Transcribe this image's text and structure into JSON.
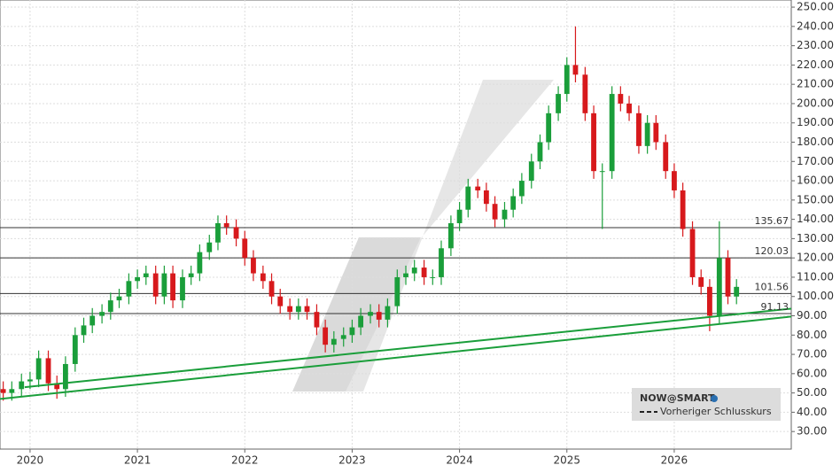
{
  "chart_data": {
    "type": "candlestick",
    "x": [
      2019.75,
      2019.83,
      2019.92,
      2020.0,
      2020.08,
      2020.17,
      2020.25,
      2020.33,
      2020.42,
      2020.5,
      2020.58,
      2020.67,
      2020.75,
      2020.83,
      2020.92,
      2021.0,
      2021.08,
      2021.17,
      2021.25,
      2021.33,
      2021.42,
      2021.5,
      2021.58,
      2021.67,
      2021.75,
      2021.83,
      2021.92,
      2022.0,
      2022.08,
      2022.17,
      2022.25,
      2022.33,
      2022.42,
      2022.5,
      2022.58,
      2022.67,
      2022.75,
      2022.83,
      2022.92,
      2023.0,
      2023.08,
      2023.17,
      2023.25,
      2023.33,
      2023.42,
      2023.5,
      2023.58,
      2023.67,
      2023.75,
      2023.83,
      2023.92,
      2024.0,
      2024.08,
      2024.17,
      2024.25,
      2024.33,
      2024.42,
      2024.5,
      2024.58,
      2024.67,
      2024.75,
      2024.83,
      2024.92,
      2025.0,
      2025.08,
      2025.17,
      2025.25,
      2025.33,
      2025.42,
      2025.5,
      2025.58,
      2025.67,
      2025.75,
      2025.83,
      2025.92,
      2026.0,
      2026.08,
      2026.17,
      2026.25,
      2026.33,
      2026.42,
      2026.5,
      2026.58
    ],
    "open": [
      52,
      50,
      52,
      56,
      57,
      68,
      55,
      52,
      65,
      80,
      85,
      90,
      92,
      98,
      100,
      108,
      110,
      112,
      100,
      112,
      98,
      110,
      112,
      123,
      128,
      138,
      136,
      130,
      120,
      112,
      108,
      100,
      95,
      92,
      95,
      92,
      84,
      75,
      78,
      80,
      84,
      90,
      92,
      88,
      95,
      110,
      112,
      115,
      110,
      110,
      125,
      138,
      145,
      157,
      155,
      148,
      140,
      145,
      152,
      160,
      170,
      180,
      195,
      205,
      220,
      215,
      195,
      165,
      165,
      205,
      200,
      195,
      178,
      190,
      180,
      165,
      155,
      135,
      110,
      105,
      90,
      120,
      100
    ],
    "high": [
      56,
      56,
      60,
      61,
      72,
      72,
      59,
      69,
      84,
      89,
      94,
      96,
      102,
      104,
      112,
      114,
      116,
      116,
      116,
      116,
      114,
      116,
      127,
      132,
      142,
      142,
      140,
      134,
      124,
      116,
      112,
      104,
      99,
      99,
      99,
      96,
      88,
      82,
      84,
      88,
      94,
      96,
      96,
      99,
      114,
      116,
      119,
      119,
      114,
      129,
      142,
      149,
      161,
      161,
      159,
      152,
      149,
      156,
      164,
      174,
      184,
      199,
      209,
      224,
      240,
      219,
      199,
      169,
      209,
      209,
      204,
      199,
      194,
      194,
      184,
      169,
      159,
      139,
      114,
      109,
      139,
      124,
      109
    ],
    "low": [
      46,
      46,
      48,
      52,
      53,
      51,
      47,
      48,
      61,
      76,
      81,
      86,
      88,
      94,
      96,
      104,
      106,
      96,
      96,
      94,
      94,
      106,
      108,
      119,
      124,
      132,
      126,
      116,
      108,
      104,
      96,
      91,
      88,
      88,
      88,
      80,
      71,
      71,
      74,
      76,
      80,
      86,
      84,
      84,
      91,
      106,
      108,
      106,
      106,
      106,
      121,
      134,
      141,
      151,
      144,
      136,
      136,
      141,
      148,
      156,
      166,
      176,
      191,
      201,
      211,
      191,
      161,
      135,
      161,
      196,
      191,
      174,
      174,
      176,
      161,
      151,
      131,
      106,
      101,
      82,
      86,
      96,
      96
    ],
    "close": [
      50,
      52,
      56,
      57,
      68,
      55,
      52,
      65,
      80,
      85,
      90,
      92,
      98,
      100,
      108,
      110,
      112,
      100,
      112,
      98,
      110,
      112,
      123,
      128,
      138,
      136,
      130,
      120,
      112,
      108,
      100,
      95,
      92,
      95,
      92,
      84,
      75,
      78,
      80,
      84,
      90,
      92,
      88,
      95,
      110,
      112,
      115,
      110,
      110,
      125,
      138,
      145,
      157,
      155,
      148,
      140,
      145,
      152,
      160,
      170,
      180,
      195,
      205,
      220,
      215,
      195,
      165,
      165,
      205,
      200,
      195,
      178,
      190,
      180,
      165,
      155,
      135,
      110,
      105,
      90,
      120,
      100,
      105
    ],
    "up_color": "#1a9e3a",
    "down_color": "#d7191c",
    "levels": [
      135.67,
      120.03,
      101.56,
      91.13
    ],
    "trendlines": [
      {
        "x": [
          2019.72,
          2027.09
        ],
        "values": [
          46.9,
          89.6
        ],
        "color": "#1a9e3a"
      },
      {
        "x": [
          2019.95,
          2027.09
        ],
        "values": [
          53,
          93.7
        ],
        "color": "#1a9e3a"
      }
    ],
    "xlim": [
      2019.72,
      2027.09
    ],
    "xticks": [
      2020,
      2021,
      2022,
      2023,
      2024,
      2025,
      2026
    ],
    "ylim": [
      20.9,
      253.7
    ],
    "yticks": [
      {
        "value": 30,
        "label": "30.00"
      },
      {
        "value": 40,
        "label": "40.00"
      },
      {
        "value": 50,
        "label": "50.00"
      },
      {
        "value": 60,
        "label": "60.00"
      },
      {
        "value": 70,
        "label": "70.00"
      },
      {
        "value": 80,
        "label": "80.00"
      },
      {
        "value": 90,
        "label": "90.00"
      },
      {
        "value": 100,
        "label": "100.00"
      },
      {
        "value": 110,
        "label": "110.00"
      },
      {
        "value": 120,
        "label": "120.00"
      },
      {
        "value": 130,
        "label": "130.00"
      },
      {
        "value": 140,
        "label": "140.00"
      },
      {
        "value": 150,
        "label": "150.00"
      },
      {
        "value": 160,
        "label": "160.00"
      },
      {
        "value": 170,
        "label": "170.00"
      },
      {
        "value": 180,
        "label": "180.00"
      },
      {
        "value": 190,
        "label": "190.00"
      },
      {
        "value": 200,
        "label": "200.00"
      },
      {
        "value": 210,
        "label": "210.00"
      },
      {
        "value": 220,
        "label": "220.00"
      },
      {
        "value": 230,
        "label": "230.00"
      },
      {
        "value": 240,
        "label": "240.00"
      },
      {
        "value": 250,
        "label": "250.00"
      }
    ],
    "grid": true,
    "legend": {
      "title": "NOW@SMART",
      "entry": "Vorheriger Schlusskurs"
    }
  }
}
